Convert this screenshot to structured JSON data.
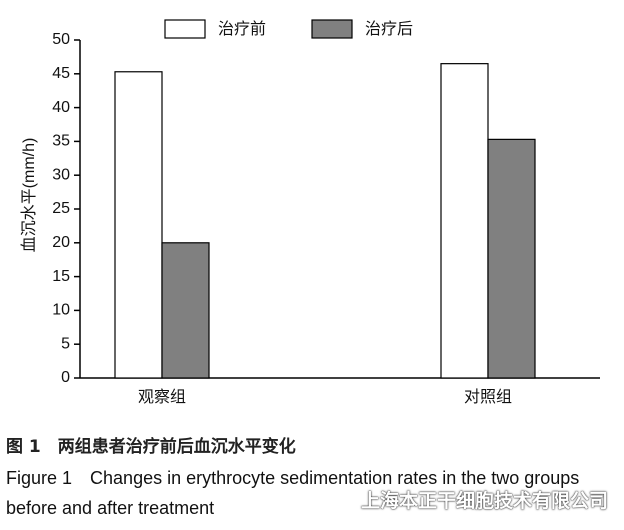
{
  "chart_data": {
    "type": "bar",
    "ylabel": "血沉水平(mm/h)",
    "categories": [
      "观察组",
      "对照组"
    ],
    "series": [
      {
        "name": "治疗前",
        "color": "#ffffff",
        "values": [
          45.3,
          46.5
        ]
      },
      {
        "name": "治疗后",
        "color": "#808080",
        "values": [
          20,
          35.3
        ]
      }
    ],
    "ylim": [
      0,
      50
    ],
    "yticks": [
      0,
      5,
      10,
      15,
      20,
      25,
      30,
      35,
      40,
      45,
      50
    ],
    "legend": "top"
  },
  "caption": {
    "cn": "图 1　两组患者治疗前后血沉水平变化",
    "en": "Figure 1　Changes in erythrocyte sedimentation rates in the two groups before and after treatment"
  },
  "watermark": "上海本正干细胞技术有限公司"
}
